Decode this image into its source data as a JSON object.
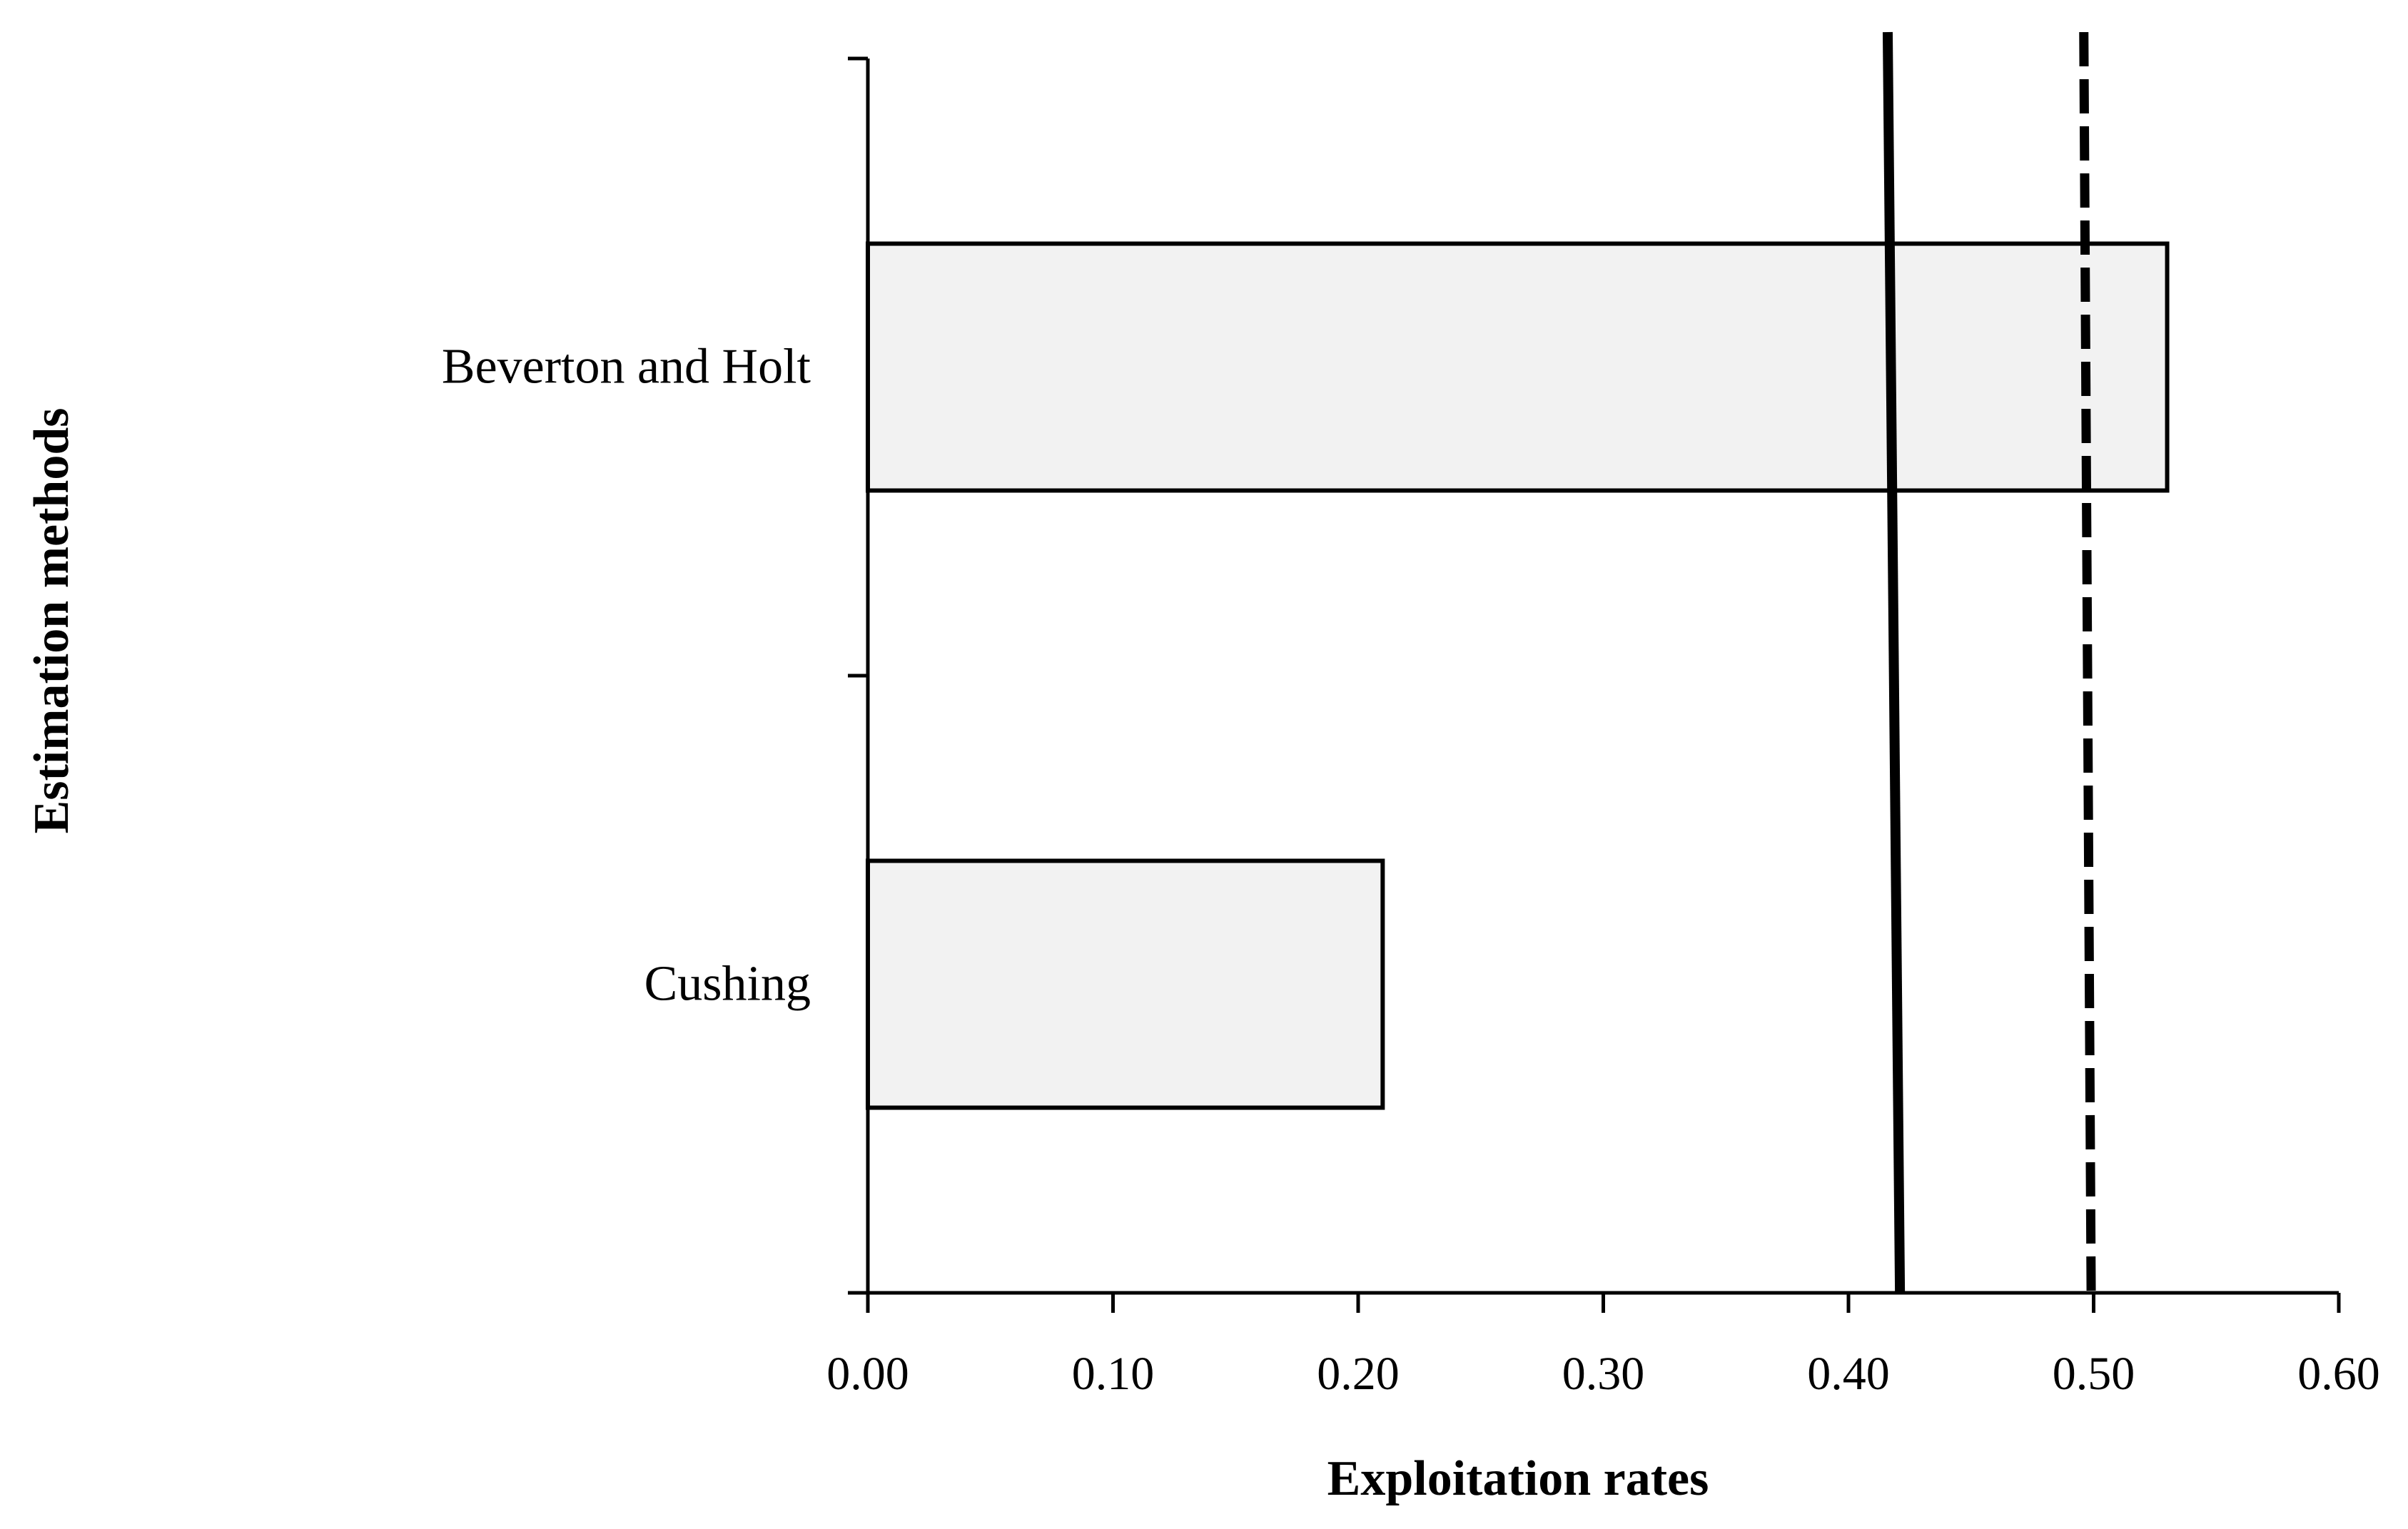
{
  "chart_data": {
    "type": "bar",
    "orientation": "horizontal",
    "title": "",
    "xlabel": "Exploitation rates",
    "ylabel": "Estimation methods",
    "categories": [
      "Beverton and Holt",
      "Cushing"
    ],
    "values": [
      0.53,
      0.21
    ],
    "xlim": [
      0,
      0.6
    ],
    "xticks": [
      0,
      0.1,
      0.2,
      0.3,
      0.4,
      0.5,
      0.6
    ],
    "xtick_labels": [
      "0.00",
      "0.10",
      "0.20",
      "0.30",
      "0.40",
      "0.50",
      "0.60"
    ],
    "reference_lines": [
      {
        "style": "solid",
        "x_top": 0.416,
        "x_bottom": 0.421
      },
      {
        "style": "dashed",
        "x_top": 0.496,
        "x_bottom": 0.499
      }
    ],
    "bar_fill": "#f2f2f2",
    "bar_stroke": "#000000",
    "grid": false,
    "legend": "none"
  }
}
